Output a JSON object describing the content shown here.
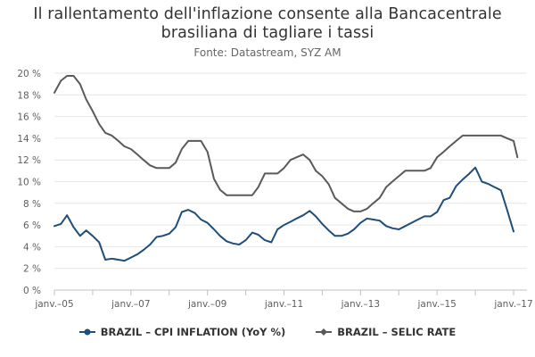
{
  "title_line1": "Il rallentamento dell'inflazione consente alla Bancacentrale",
  "title_line2": "brasiliana di tagliare i tassi",
  "subtitle": "Fonte: Datastream, SYZ AM",
  "chart_data": {
    "type": "line",
    "x_ticks": [
      "janv.–05",
      "janv.–07",
      "janv.–09",
      "janv.–11",
      "janv.–13",
      "janv.–15",
      "janv.–17"
    ],
    "y_ticks": [
      "0 %",
      "2 %",
      "4 %",
      "6 %",
      "8 %",
      "10 %",
      "12 %",
      "14 %",
      "16 %",
      "18 %",
      "20 %"
    ],
    "ylim": [
      0,
      20
    ],
    "xlim": [
      2005.0,
      2017.25
    ],
    "grid": "horizontal",
    "legend_position": "bottom",
    "series": [
      {
        "name": "BRAZIL – CPI INFLATION (YoY %)",
        "color": "#1f4e79",
        "marker": "circle",
        "x": [
          2005.0,
          2005.17,
          2005.33,
          2005.5,
          2005.67,
          2005.83,
          2006.0,
          2006.17,
          2006.33,
          2006.5,
          2006.67,
          2006.83,
          2007.0,
          2007.17,
          2007.33,
          2007.5,
          2007.67,
          2007.83,
          2008.0,
          2008.17,
          2008.33,
          2008.5,
          2008.67,
          2008.83,
          2009.0,
          2009.17,
          2009.33,
          2009.5,
          2009.67,
          2009.83,
          2010.0,
          2010.17,
          2010.33,
          2010.5,
          2010.67,
          2010.83,
          2011.0,
          2011.17,
          2011.33,
          2011.5,
          2011.67,
          2011.83,
          2012.0,
          2012.17,
          2012.33,
          2012.5,
          2012.67,
          2012.83,
          2013.0,
          2013.17,
          2013.33,
          2013.5,
          2013.67,
          2013.83,
          2014.0,
          2014.17,
          2014.33,
          2014.5,
          2014.67,
          2014.83,
          2015.0,
          2015.17,
          2015.33,
          2015.5,
          2015.67,
          2015.83,
          2016.0,
          2016.17,
          2016.33,
          2016.5,
          2016.67,
          2016.83,
          2017.0
        ],
        "values": [
          5.9,
          6.1,
          6.9,
          5.8,
          5.0,
          5.5,
          5.0,
          4.4,
          2.8,
          2.9,
          2.8,
          2.7,
          3.0,
          3.3,
          3.7,
          4.2,
          4.9,
          5.0,
          5.2,
          5.8,
          7.2,
          7.4,
          7.1,
          6.5,
          6.2,
          5.6,
          5.0,
          4.5,
          4.3,
          4.2,
          4.6,
          5.3,
          5.1,
          4.6,
          4.4,
          5.6,
          6.0,
          6.3,
          6.6,
          6.9,
          7.3,
          6.8,
          6.1,
          5.5,
          5.0,
          5.0,
          5.2,
          5.6,
          6.2,
          6.6,
          6.5,
          6.4,
          5.9,
          5.7,
          5.6,
          5.9,
          6.2,
          6.5,
          6.8,
          6.8,
          7.2,
          8.3,
          8.5,
          9.6,
          10.2,
          10.7,
          11.3,
          10.0,
          9.8,
          9.5,
          9.2,
          7.4,
          5.4
        ]
      },
      {
        "name": "BRAZIL – SELIC RATE",
        "color": "#5a5a5a",
        "marker": "diamond",
        "x": [
          2005.0,
          2005.17,
          2005.33,
          2005.5,
          2005.67,
          2005.83,
          2006.0,
          2006.17,
          2006.33,
          2006.5,
          2006.67,
          2006.83,
          2007.0,
          2007.17,
          2007.33,
          2007.5,
          2007.67,
          2007.83,
          2008.0,
          2008.17,
          2008.33,
          2008.5,
          2008.67,
          2008.83,
          2009.0,
          2009.17,
          2009.33,
          2009.5,
          2009.67,
          2009.83,
          2010.0,
          2010.17,
          2010.33,
          2010.5,
          2010.67,
          2010.83,
          2011.0,
          2011.17,
          2011.33,
          2011.5,
          2011.67,
          2011.83,
          2012.0,
          2012.17,
          2012.33,
          2012.5,
          2012.67,
          2012.83,
          2013.0,
          2013.17,
          2013.33,
          2013.5,
          2013.67,
          2013.83,
          2014.0,
          2014.17,
          2014.33,
          2014.5,
          2014.67,
          2014.83,
          2015.0,
          2015.17,
          2015.33,
          2015.5,
          2015.67,
          2015.83,
          2016.0,
          2016.17,
          2016.33,
          2016.5,
          2016.67,
          2016.83,
          2017.0,
          2017.1
        ],
        "values": [
          18.2,
          19.3,
          19.75,
          19.75,
          19.0,
          17.6,
          16.5,
          15.3,
          14.5,
          14.25,
          13.75,
          13.25,
          13.0,
          12.5,
          12.0,
          11.5,
          11.25,
          11.25,
          11.25,
          11.75,
          13.0,
          13.75,
          13.75,
          13.75,
          12.75,
          10.25,
          9.25,
          8.75,
          8.75,
          8.75,
          8.75,
          8.75,
          9.5,
          10.75,
          10.75,
          10.75,
          11.25,
          12.0,
          12.25,
          12.5,
          12.0,
          11.0,
          10.5,
          9.75,
          8.5,
          8.0,
          7.5,
          7.25,
          7.25,
          7.5,
          8.0,
          8.5,
          9.5,
          10.0,
          10.5,
          11.0,
          11.0,
          11.0,
          11.0,
          11.25,
          12.25,
          12.75,
          13.25,
          13.75,
          14.25,
          14.25,
          14.25,
          14.25,
          14.25,
          14.25,
          14.25,
          14.0,
          13.75,
          12.25
        ]
      }
    ]
  }
}
